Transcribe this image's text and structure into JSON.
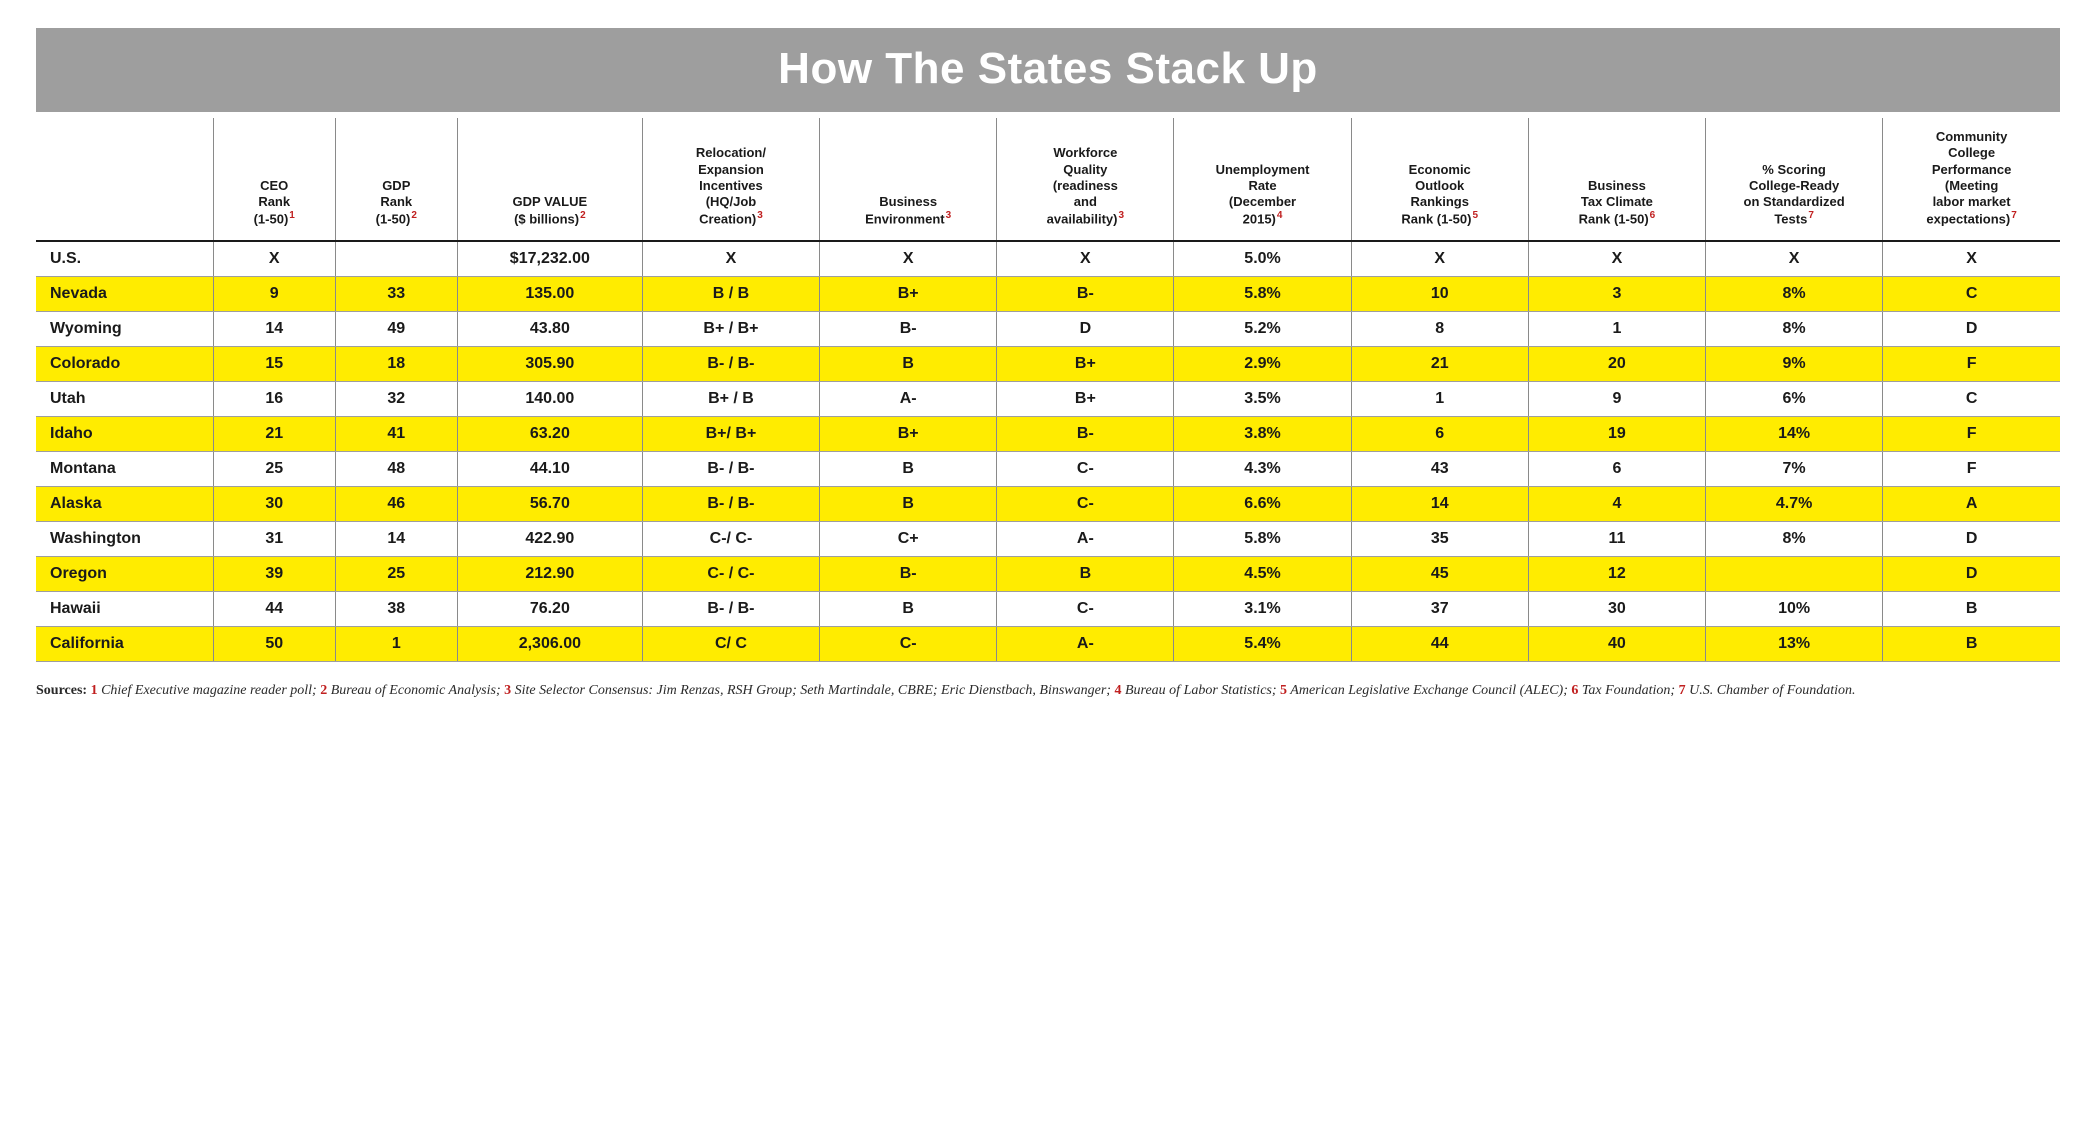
{
  "title": "How The States Stack Up",
  "colors": {
    "title_bg": "#9e9e9e",
    "title_text": "#ffffff",
    "highlight_row_bg": "#ffec00",
    "border_gray": "#8a8a8a",
    "heavy_rule": "#1a1a1a",
    "superscript": "#c02020",
    "text": "#1a1a1a"
  },
  "columns": [
    {
      "label": "",
      "sup": "",
      "class": "state"
    },
    {
      "label": "CEO\nRank\n(1-50)",
      "sup": "1",
      "class": "narrow"
    },
    {
      "label": "GDP\nRank\n(1-50)",
      "sup": "2",
      "class": "narrow"
    },
    {
      "label": "GDP VALUE\n($ billions)",
      "sup": "2",
      "class": "gdpval"
    },
    {
      "label": "Relocation/\nExpansion\nIncentives\n(HQ/Job\nCreation)",
      "sup": "3",
      "class": "mid"
    },
    {
      "label": "Business\nEnvironment",
      "sup": "3",
      "class": "mid"
    },
    {
      "label": "Workforce\nQuality\n(readiness\nand\navailability)",
      "sup": "3",
      "class": "mid"
    },
    {
      "label": "Unemployment\nRate\n(December\n2015)",
      "sup": "4",
      "class": "mid"
    },
    {
      "label": "Economic\nOutlook\nRankings\nRank (1-50)",
      "sup": "5",
      "class": "mid"
    },
    {
      "label": "Business\nTax Climate\nRank (1-50)",
      "sup": "6",
      "class": "mid"
    },
    {
      "label": "% Scoring\nCollege-Ready\non Standardized\nTests",
      "sup": "7",
      "class": "mid"
    },
    {
      "label": "Community\nCollege\nPerformance\n(Meeting\nlabor market\nexpectations)",
      "sup": "7",
      "class": "mid"
    }
  ],
  "rows": [
    {
      "hl": false,
      "us": true,
      "cells": [
        "U.S.",
        "X",
        "",
        "$17,232.00",
        "X",
        "X",
        "X",
        "5.0%",
        "X",
        "X",
        "X",
        "X"
      ]
    },
    {
      "hl": true,
      "us": false,
      "cells": [
        "Nevada",
        "9",
        "33",
        "135.00",
        "B / B",
        "B+",
        "B-",
        "5.8%",
        "10",
        "3",
        "8%",
        "C"
      ]
    },
    {
      "hl": false,
      "us": false,
      "cells": [
        "Wyoming",
        "14",
        "49",
        "43.80",
        "B+ / B+",
        "B-",
        "D",
        "5.2%",
        "8",
        "1",
        "8%",
        "D"
      ]
    },
    {
      "hl": true,
      "us": false,
      "cells": [
        "Colorado",
        "15",
        "18",
        "305.90",
        "B- / B-",
        "B",
        "B+",
        "2.9%",
        "21",
        "20",
        "9%",
        "F"
      ]
    },
    {
      "hl": false,
      "us": false,
      "cells": [
        "Utah",
        "16",
        "32",
        "140.00",
        "B+ / B",
        "A-",
        "B+",
        "3.5%",
        "1",
        "9",
        "6%",
        "C"
      ]
    },
    {
      "hl": true,
      "us": false,
      "cells": [
        "Idaho",
        "21",
        "41",
        "63.20",
        "B+/ B+",
        "B+",
        "B-",
        "3.8%",
        "6",
        "19",
        "14%",
        "F"
      ]
    },
    {
      "hl": false,
      "us": false,
      "cells": [
        "Montana",
        "25",
        "48",
        "44.10",
        "B- / B-",
        "B",
        "C-",
        "4.3%",
        "43",
        "6",
        "7%",
        "F"
      ]
    },
    {
      "hl": true,
      "us": false,
      "cells": [
        "Alaska",
        "30",
        "46",
        "56.70",
        "B- / B-",
        "B",
        "C-",
        "6.6%",
        "14",
        "4",
        "4.7%",
        "A"
      ]
    },
    {
      "hl": false,
      "us": false,
      "cells": [
        "Washington",
        "31",
        "14",
        "422.90",
        "C-/ C-",
        "C+",
        "A-",
        "5.8%",
        "35",
        "11",
        "8%",
        "D"
      ]
    },
    {
      "hl": true,
      "us": false,
      "cells": [
        "Oregon",
        "39",
        "25",
        "212.90",
        "C- / C-",
        "B-",
        "B",
        "4.5%",
        "45",
        "12",
        "",
        "D"
      ]
    },
    {
      "hl": false,
      "us": false,
      "cells": [
        "Hawaii",
        "44",
        "38",
        "76.20",
        "B- / B-",
        "B",
        "C-",
        "3.1%",
        "37",
        "30",
        "10%",
        "B"
      ]
    },
    {
      "hl": true,
      "us": false,
      "cells": [
        "California",
        "50",
        "1",
        "2,306.00",
        "C/ C",
        "C-",
        "A-",
        "5.4%",
        "44",
        "40",
        "13%",
        "B"
      ]
    }
  ],
  "sources": {
    "lead": "Sources:",
    "items": [
      {
        "n": "1",
        "text": "Chief Executive magazine reader poll;"
      },
      {
        "n": "2",
        "text": "Bureau of Economic Analysis;"
      },
      {
        "n": "3",
        "text": "Site Selector Consensus: Jim Renzas, RSH Group; Seth Martindale, CBRE; Eric Dienstbach, Binswanger;"
      },
      {
        "n": "4",
        "text": "Bureau of Labor Statistics;"
      },
      {
        "n": "5",
        "text": "American Legislative Exchange Council  (ALEC);"
      },
      {
        "n": "6",
        "text": "Tax Foundation;"
      },
      {
        "n": "7",
        "text": "U.S. Chamber of Foundation."
      }
    ]
  }
}
